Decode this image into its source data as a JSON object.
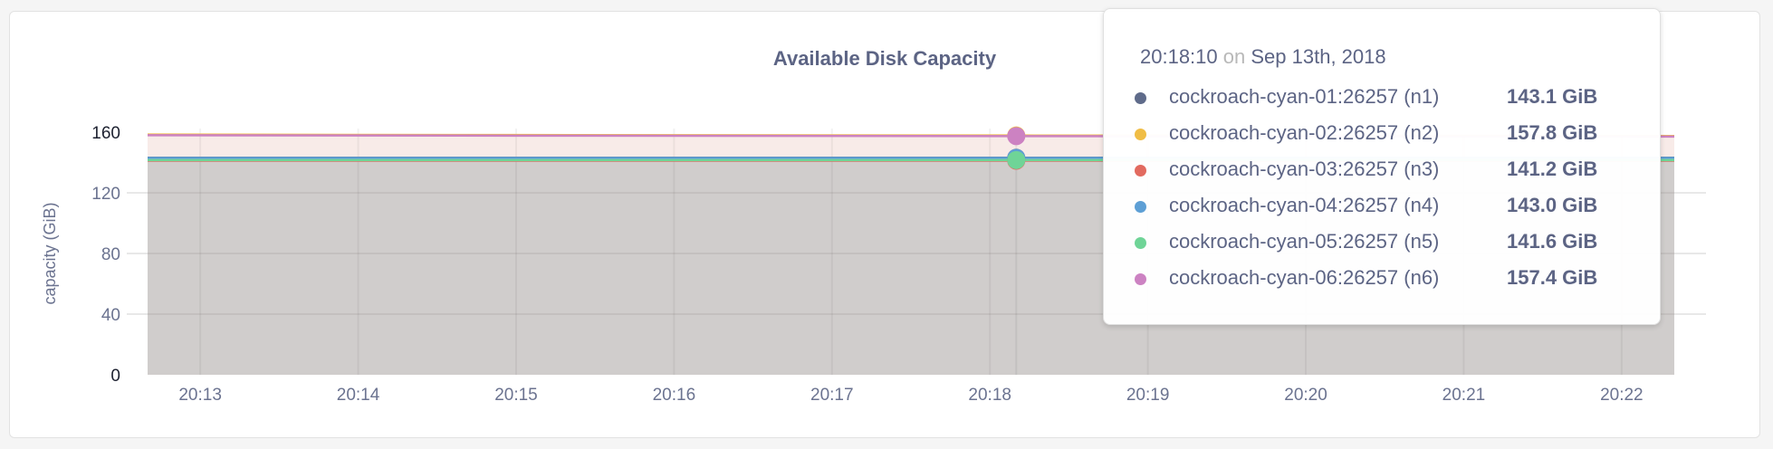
{
  "chart_data": {
    "type": "area",
    "title": "Available Disk Capacity",
    "ylabel": "capacity (GiB)",
    "xlabel": "",
    "ylim": [
      0,
      160
    ],
    "yticks": [
      "0",
      "40",
      "80",
      "120",
      "160"
    ],
    "xlim": [
      "20:12:40",
      "20:22:20"
    ],
    "xticks": [
      "20:13",
      "20:14",
      "20:15",
      "20:16",
      "20:17",
      "20:18",
      "20:19",
      "20:20",
      "20:21",
      "20:22"
    ],
    "grid": true,
    "x": [
      "20:12:40",
      "20:15:00",
      "20:18:10",
      "20:22:20"
    ],
    "series": [
      {
        "name": "cockroach-cyan-01:26257 (n1)",
        "color": "#5f6b8a",
        "values": [
          143.1,
          143.1,
          143.1,
          143.1
        ],
        "label": "143.1 GiB"
      },
      {
        "name": "cockroach-cyan-02:26257 (n2)",
        "color": "#f0bd45",
        "values": [
          158.4,
          158.1,
          157.8,
          157.5
        ],
        "label": "157.8 GiB"
      },
      {
        "name": "cockroach-cyan-03:26257 (n3)",
        "color": "#e26a5f",
        "values": [
          141.2,
          141.2,
          141.2,
          141.2
        ],
        "label": "141.2 GiB"
      },
      {
        "name": "cockroach-cyan-04:26257 (n4)",
        "color": "#5d9fd5",
        "values": [
          143.0,
          143.0,
          143.0,
          143.0
        ],
        "label": "143.0 GiB"
      },
      {
        "name": "cockroach-cyan-05:26257 (n5)",
        "color": "#6fd497",
        "values": [
          141.6,
          141.6,
          141.6,
          141.6
        ],
        "label": "141.6 GiB"
      },
      {
        "name": "cockroach-cyan-06:26257 (n6)",
        "color": "#cc82c2",
        "values": [
          158.0,
          157.7,
          157.4,
          157.1
        ],
        "label": "157.4 GiB"
      }
    ],
    "tooltip": {
      "time": "20:18:10",
      "on": "on",
      "date": "Sep 13th, 2018"
    }
  }
}
